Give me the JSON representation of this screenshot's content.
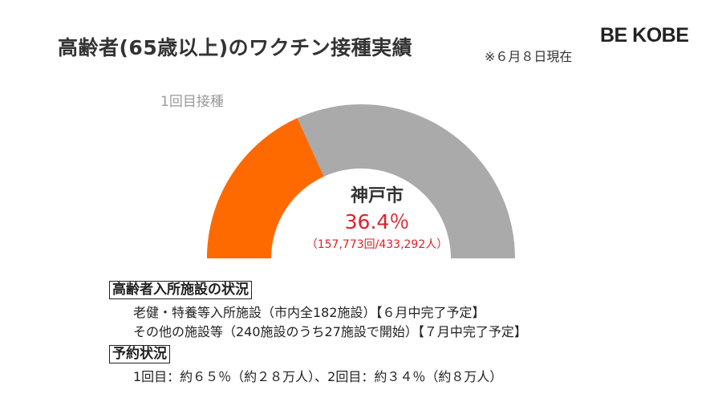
{
  "header": {
    "title": "高齢者(65歳以上)のワクチン接種実績",
    "as_of": "※６月８日現在",
    "brand": "BE KOBE"
  },
  "gauge": {
    "series_label": "1回目接種",
    "city": "神戸市",
    "percent_text": "36.4％",
    "counts_text": "（157,773回/433,292人）",
    "fill_color": "#ff6a00",
    "track_color": "#aaaaaa"
  },
  "chart_data": {
    "type": "pie",
    "variant": "semicircle-gauge",
    "title": "高齢者(65歳以上)のワクチン接種実績",
    "series": [
      {
        "name": "1回目接種",
        "value": 36.4,
        "numerator": 157773,
        "denominator": 433292
      }
    ],
    "range": [
      0,
      100
    ]
  },
  "facilities": {
    "heading": "高齢者入所施設の状況",
    "lines": [
      "老健・特養等入所施設（市内全182施設）【６月中完了予定】",
      "その他の施設等（240施設のうち27施設で開始）【７月中完了予定】"
    ]
  },
  "reservation": {
    "heading": "予約状況",
    "line": "1回目：約６５％（約２８万人）、2回目：約３４％（約８万人）"
  }
}
